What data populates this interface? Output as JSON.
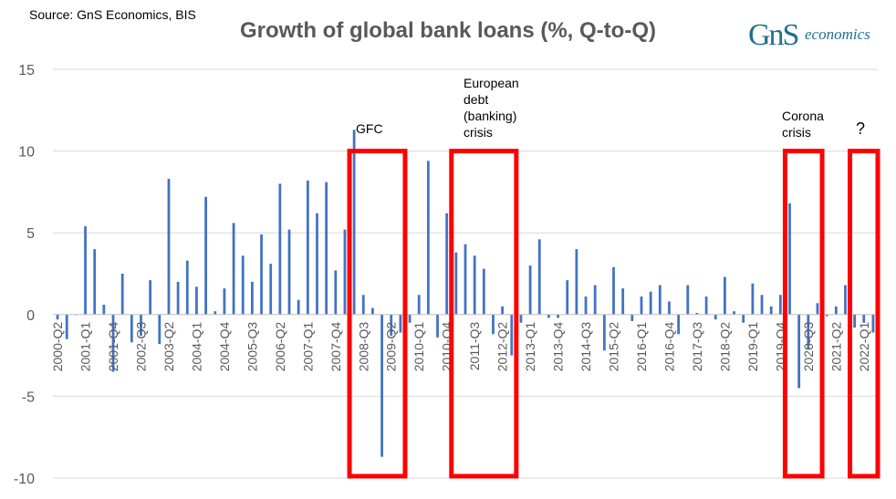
{
  "source": "Source: GnS Economics, BIS",
  "logo": {
    "gns": "GnS",
    "economics": "economics"
  },
  "colors": {
    "bar": "#4472c4",
    "highlight": "#ff0000",
    "grid": "#d9d9d9",
    "text": "#595959"
  },
  "annotations": {
    "gfc": "GFC",
    "european": [
      "European",
      "debt",
      "(banking)",
      "crisis"
    ],
    "corona": [
      "Corona",
      "crisis"
    ],
    "question": "?"
  },
  "chart_data": {
    "type": "bar",
    "title": "Growth of global bank loans (%, Q-to-Q)",
    "xlabel": "",
    "ylabel": "",
    "ylim": [
      -10,
      15
    ],
    "yticks": [
      -10,
      -5,
      0,
      5,
      10,
      15
    ],
    "grid": true,
    "legend": "none",
    "tick_labels": [
      "2000-Q2",
      "2001-Q1",
      "2001-Q4",
      "2002-Q3",
      "2003-Q2",
      "2004-Q1",
      "2004-Q4",
      "2005-Q3",
      "2006-Q2",
      "2007-Q1",
      "2007-Q4",
      "2008-Q3",
      "2009-Q2",
      "2010-Q1",
      "2010-Q4",
      "2011-Q3",
      "2012-Q2",
      "2013-Q1",
      "2013-Q4",
      "2014-Q3",
      "2015-Q2",
      "2016-Q1",
      "2016-Q4",
      "2017-Q3",
      "2018-Q2",
      "2019-Q1",
      "2019-Q4",
      "2020-Q3",
      "2021-Q2",
      "2022-Q1"
    ],
    "categories": [
      "2000-Q2",
      "2000-Q3",
      "2000-Q4",
      "2001-Q1",
      "2001-Q2",
      "2001-Q3",
      "2001-Q4",
      "2002-Q1",
      "2002-Q2",
      "2002-Q3",
      "2002-Q4",
      "2003-Q1",
      "2003-Q2",
      "2003-Q3",
      "2003-Q4",
      "2004-Q1",
      "2004-Q2",
      "2004-Q3",
      "2004-Q4",
      "2005-Q1",
      "2005-Q2",
      "2005-Q3",
      "2005-Q4",
      "2006-Q1",
      "2006-Q2",
      "2006-Q3",
      "2006-Q4",
      "2007-Q1",
      "2007-Q2",
      "2007-Q3",
      "2007-Q4",
      "2008-Q1",
      "2008-Q2",
      "2008-Q3",
      "2008-Q4",
      "2009-Q1",
      "2009-Q2",
      "2009-Q3",
      "2009-Q4",
      "2010-Q1",
      "2010-Q2",
      "2010-Q3",
      "2010-Q4",
      "2011-Q1",
      "2011-Q2",
      "2011-Q3",
      "2011-Q4",
      "2012-Q1",
      "2012-Q2",
      "2012-Q3",
      "2012-Q4",
      "2013-Q1",
      "2013-Q2",
      "2013-Q3",
      "2013-Q4",
      "2014-Q1",
      "2014-Q2",
      "2014-Q3",
      "2014-Q4",
      "2015-Q1",
      "2015-Q2",
      "2015-Q3",
      "2015-Q4",
      "2016-Q1",
      "2016-Q2",
      "2016-Q3",
      "2016-Q4",
      "2017-Q1",
      "2017-Q2",
      "2017-Q3",
      "2017-Q4",
      "2018-Q1",
      "2018-Q2",
      "2018-Q3",
      "2018-Q4",
      "2019-Q1",
      "2019-Q2",
      "2019-Q3",
      "2019-Q4",
      "2020-Q1",
      "2020-Q2",
      "2020-Q3",
      "2020-Q4",
      "2021-Q1",
      "2021-Q2",
      "2021-Q3",
      "2021-Q4",
      "2022-Q1",
      "2022-Q2"
    ],
    "values": [
      -0.3,
      -1.5,
      0,
      5.4,
      4.0,
      0.6,
      -3.5,
      2.5,
      -1.7,
      -1.3,
      2.1,
      -1.8,
      8.3,
      2.0,
      3.3,
      1.7,
      7.2,
      0.2,
      1.6,
      5.6,
      3.6,
      2.0,
      4.9,
      3.1,
      8.0,
      5.2,
      0.9,
      8.2,
      6.2,
      8.1,
      2.7,
      5.2,
      11.3,
      1.2,
      0.4,
      -8.7,
      -1.3,
      -1.1,
      -0.5,
      1.2,
      9.4,
      -1.4,
      6.2,
      3.8,
      4.3,
      3.6,
      2.8,
      -1.2,
      0.5,
      -2.5,
      -0.5,
      3.0,
      4.6,
      -0.2,
      -0.2,
      2.1,
      4.0,
      1.1,
      1.8,
      -2.2,
      2.9,
      1.6,
      -0.4,
      1.1,
      1.4,
      1.8,
      0.8,
      -1.2,
      1.8,
      0.1,
      1.1,
      -0.3,
      2.3,
      0.2,
      -0.5,
      1.9,
      1.2,
      0.5,
      1.2,
      6.8,
      -4.5,
      -2.1,
      0.7,
      -0.1,
      0.5,
      1.8,
      -0.8,
      -0.5,
      -1.1
    ],
    "highlights": [
      {
        "label": "GFC",
        "from": "2008-Q2",
        "to": "2009-Q3",
        "ymin": -10,
        "ymax": 10
      },
      {
        "label": "European debt (banking) crisis",
        "from": "2011-Q1",
        "to": "2012-Q3",
        "ymin": -10,
        "ymax": 10
      },
      {
        "label": "Corona crisis",
        "from": "2020-Q1",
        "to": "2020-Q4",
        "ymin": -10,
        "ymax": 10
      },
      {
        "label": "?",
        "from": "2021-Q4",
        "to": "2022-Q2",
        "ymin": -10,
        "ymax": 10
      }
    ]
  }
}
